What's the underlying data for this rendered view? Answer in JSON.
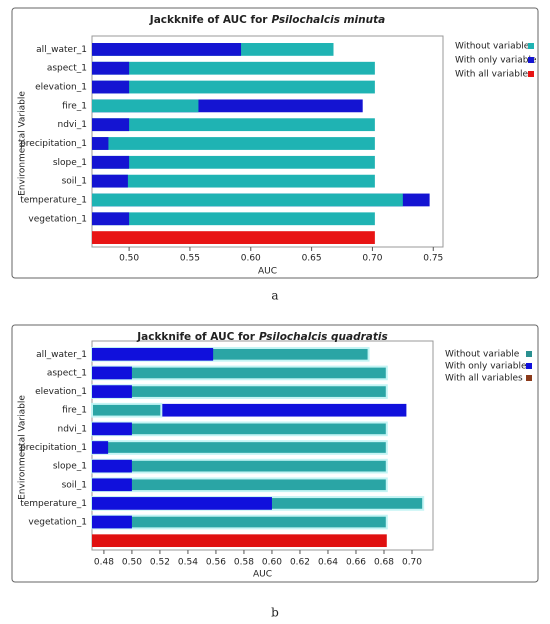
{
  "chart_data": [
    {
      "type": "bar",
      "orientation": "horizontal",
      "panel_label": "a",
      "title": "Jackknife of AUC for",
      "title_species": "Psilochalcis minuta",
      "y_label": "Environmental Variable",
      "x_label": "AUC",
      "categories": [
        "all_water_1",
        "aspect_1",
        "elevation_1",
        "fire_1",
        "ndvi_1",
        "precipitation_1",
        "slope_1",
        "soil_1",
        "temperature_1",
        "vegetation_1",
        null
      ],
      "series": [
        {
          "name": "Without variable",
          "color": "#1fb3b3",
          "marker_color": "#1fb3b3",
          "values": [
            0.668,
            0.702,
            0.702,
            0.557,
            0.702,
            0.702,
            0.702,
            0.702,
            0.725,
            0.702,
            null
          ]
        },
        {
          "name": "With only variable",
          "color": "#1414d2",
          "marker_color": "#1414d2",
          "values": [
            0.592,
            0.5,
            0.5,
            0.692,
            0.5,
            0.483,
            0.5,
            0.499,
            0.747,
            0.5,
            null
          ]
        },
        {
          "name": "With all variables",
          "color": "#e81414",
          "marker_color": "#e81414",
          "values": [
            null,
            null,
            null,
            null,
            null,
            null,
            null,
            null,
            null,
            null,
            0.702
          ]
        }
      ],
      "xlim": [
        0.4695,
        0.758
      ],
      "xticks": [
        {
          "value": 0.5,
          "label": "0.50"
        },
        0.55,
        {
          "value": 0.6,
          "label": "0.60"
        },
        0.65,
        {
          "value": 0.7,
          "label": "0.70"
        },
        0.75
      ]
    },
    {
      "type": "bar",
      "orientation": "horizontal",
      "panel_label": "b",
      "title": "Jackknife of AUC for",
      "title_species": "Psilochalcis quadratis",
      "y_label": "Environmental Variable",
      "x_label": "AUC",
      "categories": [
        "all_water_1",
        "aspect_1",
        "elevation_1",
        "fire_1",
        "ndvi_1",
        "precipitation_1",
        "slope_1",
        "soil_1",
        "temperature_1",
        "vegetation_1",
        null
      ],
      "series": [
        {
          "name": "Without variable",
          "color": "#2aa5a5",
          "marker_color": "#2a9090",
          "values": [
            0.669,
            0.682,
            0.682,
            0.521,
            0.682,
            0.682,
            0.682,
            0.682,
            0.708,
            0.682,
            null
          ]
        },
        {
          "name": "With only variable",
          "color": "#1010dc",
          "marker_color": "#1010dc",
          "values": [
            0.558,
            0.5,
            0.5,
            0.696,
            0.5,
            0.483,
            0.5,
            0.5,
            0.6,
            0.5,
            null
          ]
        },
        {
          "name": "With all variables",
          "color": "#e01010",
          "marker_color": "#8b3a1a",
          "values": [
            null,
            null,
            null,
            null,
            null,
            null,
            null,
            null,
            null,
            null,
            0.682
          ]
        }
      ],
      "bar_outline": "#c4f4f4",
      "xlim": [
        0.4715,
        0.715
      ],
      "xticks": [
        0.48,
        {
          "value": 0.5,
          "label": "0.50"
        },
        0.52,
        0.54,
        0.56,
        0.58,
        {
          "value": 0.6,
          "label": "0.60"
        },
        0.62,
        0.64,
        0.66,
        0.68,
        {
          "value": 0.7,
          "label": "0.70"
        }
      ]
    }
  ]
}
